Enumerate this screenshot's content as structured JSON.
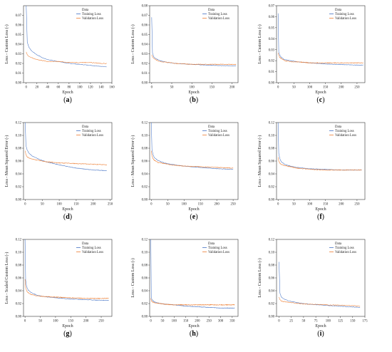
{
  "colors": {
    "training": "#4472c4",
    "validation": "#ed7d31",
    "axis": "#333333"
  },
  "chart_data": [
    {
      "type": "line",
      "label": "(a)",
      "legend_title": "Data",
      "legend_position": "top-right",
      "xlabel": "Epoch",
      "ylabel": "Loss - Custom Loss (-)",
      "xlim": [
        -5,
        160
      ],
      "ylim": [
        0.0,
        0.08
      ],
      "xticks": [
        0,
        20,
        40,
        60,
        80,
        100,
        120,
        140,
        160
      ],
      "yticks": [
        0.0,
        0.01,
        0.02,
        0.03,
        0.04,
        0.05,
        0.06,
        0.07
      ],
      "series": [
        {
          "name": "Training Loss",
          "x": [
            0,
            2,
            5,
            10,
            20,
            30,
            40,
            60,
            80,
            100,
            120,
            140,
            150
          ],
          "y": [
            0.08,
            0.042,
            0.037,
            0.033,
            0.029,
            0.026,
            0.024,
            0.022,
            0.02,
            0.019,
            0.018,
            0.017,
            0.0165
          ]
        },
        {
          "name": "Validation Loss",
          "x": [
            0,
            2,
            5,
            10,
            20,
            30,
            40,
            60,
            80,
            100,
            120,
            140,
            150
          ],
          "y": [
            0.032,
            0.029,
            0.027,
            0.026,
            0.024,
            0.023,
            0.022,
            0.022,
            0.021,
            0.021,
            0.021,
            0.02,
            0.02
          ]
        }
      ]
    },
    {
      "type": "line",
      "label": "(b)",
      "legend_title": "Data",
      "legend_position": "top-right",
      "xlabel": "Epoch",
      "ylabel": "Loss - Custom Loss (-)",
      "xlim": [
        -5,
        215
      ],
      "ylim": [
        0.0,
        0.08
      ],
      "xticks": [
        0,
        50,
        100,
        150,
        200
      ],
      "yticks": [
        0.0,
        0.01,
        0.02,
        0.03,
        0.04,
        0.05,
        0.06,
        0.07,
        0.08
      ],
      "series": [
        {
          "name": "Training Loss",
          "x": [
            0,
            2,
            5,
            10,
            20,
            40,
            60,
            100,
            150,
            200,
            210
          ],
          "y": [
            0.068,
            0.031,
            0.027,
            0.025,
            0.023,
            0.021,
            0.02,
            0.019,
            0.018,
            0.0175,
            0.0175
          ]
        },
        {
          "name": "Validation Loss",
          "x": [
            0,
            2,
            5,
            10,
            20,
            40,
            60,
            100,
            150,
            200,
            210
          ],
          "y": [
            0.029,
            0.027,
            0.025,
            0.024,
            0.022,
            0.021,
            0.02,
            0.019,
            0.019,
            0.019,
            0.019
          ]
        }
      ]
    },
    {
      "type": "line",
      "label": "(c)",
      "legend_title": "Data",
      "legend_position": "top-right",
      "xlabel": "Epoch",
      "ylabel": "Loss - Custom Loss (-)",
      "xlim": [
        -5,
        275
      ],
      "ylim": [
        0.0,
        0.07
      ],
      "xticks": [
        0,
        50,
        100,
        150,
        200,
        250
      ],
      "yticks": [
        0.0,
        0.01,
        0.02,
        0.03,
        0.04,
        0.05,
        0.06,
        0.07
      ],
      "series": [
        {
          "name": "Training Loss",
          "x": [
            0,
            2,
            5,
            10,
            20,
            40,
            60,
            100,
            150,
            200,
            250,
            270
          ],
          "y": [
            0.063,
            0.028,
            0.025,
            0.023,
            0.021,
            0.02,
            0.019,
            0.018,
            0.017,
            0.0165,
            0.016,
            0.016
          ]
        },
        {
          "name": "Validation Loss",
          "x": [
            0,
            2,
            5,
            10,
            20,
            40,
            60,
            100,
            150,
            200,
            250,
            270
          ],
          "y": [
            0.027,
            0.025,
            0.023,
            0.022,
            0.02,
            0.019,
            0.019,
            0.018,
            0.018,
            0.018,
            0.018,
            0.018
          ]
        }
      ]
    },
    {
      "type": "line",
      "label": "(d)",
      "legend_title": "Data",
      "legend_position": "top-right",
      "xlabel": "Epoch",
      "ylabel": "Loss - Mean Squared Error (-)",
      "xlim": [
        -5,
        255
      ],
      "ylim": [
        0.0,
        0.12
      ],
      "xticks": [
        0,
        50,
        100,
        150,
        200,
        250
      ],
      "yticks": [
        0.0,
        0.02,
        0.04,
        0.06,
        0.08,
        0.1,
        0.12
      ],
      "series": [
        {
          "name": "Training Loss",
          "x": [
            0,
            2,
            5,
            10,
            20,
            40,
            60,
            100,
            150,
            200,
            240
          ],
          "y": [
            0.12,
            0.085,
            0.078,
            0.073,
            0.068,
            0.063,
            0.059,
            0.054,
            0.049,
            0.046,
            0.045
          ]
        },
        {
          "name": "Validation Loss",
          "x": [
            0,
            2,
            5,
            10,
            20,
            40,
            60,
            100,
            150,
            200,
            240
          ],
          "y": [
            0.076,
            0.07,
            0.067,
            0.065,
            0.063,
            0.061,
            0.059,
            0.057,
            0.056,
            0.055,
            0.054
          ]
        }
      ]
    },
    {
      "type": "line",
      "label": "(e)",
      "legend_title": "Data",
      "legend_position": "top-right",
      "xlabel": "Epoch",
      "ylabel": "Loss - Mean Squared Error (-)",
      "xlim": [
        -5,
        265
      ],
      "ylim": [
        0.0,
        0.12
      ],
      "xticks": [
        0,
        50,
        100,
        150,
        200,
        250
      ],
      "yticks": [
        0.0,
        0.02,
        0.04,
        0.06,
        0.08,
        0.1,
        0.12
      ],
      "series": [
        {
          "name": "Training Loss",
          "x": [
            0,
            2,
            5,
            10,
            20,
            40,
            60,
            100,
            150,
            200,
            250
          ],
          "y": [
            0.12,
            0.078,
            0.07,
            0.065,
            0.061,
            0.057,
            0.055,
            0.052,
            0.05,
            0.048,
            0.047
          ]
        },
        {
          "name": "Validation Loss",
          "x": [
            0,
            2,
            5,
            10,
            20,
            40,
            60,
            100,
            150,
            200,
            250
          ],
          "y": [
            0.076,
            0.068,
            0.064,
            0.061,
            0.058,
            0.056,
            0.054,
            0.052,
            0.051,
            0.05,
            0.049
          ]
        }
      ]
    },
    {
      "type": "line",
      "label": "(f)",
      "legend_title": "Data",
      "legend_position": "top-right",
      "xlabel": "Epoch",
      "ylabel": "Loss - Mean Squared Error (-)",
      "xlim": [
        -5,
        275
      ],
      "ylim": [
        0.0,
        0.12
      ],
      "xticks": [
        0,
        50,
        100,
        150,
        200,
        250
      ],
      "yticks": [
        0.0,
        0.02,
        0.04,
        0.06,
        0.08,
        0.1,
        0.12
      ],
      "series": [
        {
          "name": "Training Loss",
          "x": [
            0,
            2,
            5,
            10,
            20,
            40,
            60,
            100,
            150,
            200,
            265
          ],
          "y": [
            0.12,
            0.072,
            0.064,
            0.059,
            0.055,
            0.052,
            0.05,
            0.048,
            0.047,
            0.046,
            0.046
          ]
        },
        {
          "name": "Validation Loss",
          "x": [
            0,
            2,
            5,
            10,
            20,
            40,
            60,
            100,
            150,
            200,
            265
          ],
          "y": [
            0.066,
            0.06,
            0.057,
            0.055,
            0.053,
            0.051,
            0.049,
            0.047,
            0.046,
            0.046,
            0.046
          ]
        }
      ]
    },
    {
      "type": "line",
      "label": "(g)",
      "legend_title": "Data",
      "legend_position": "top-right",
      "xlabel": "Epoch",
      "ylabel": "Loss - Scaled Custom Loss (-)",
      "xlim": [
        -5,
        285
      ],
      "ylim": [
        0.0,
        0.12
      ],
      "xticks": [
        0,
        50,
        100,
        150,
        200,
        250
      ],
      "yticks": [
        0.0,
        0.02,
        0.04,
        0.06,
        0.08,
        0.1,
        0.12
      ],
      "series": [
        {
          "name": "Training Loss",
          "x": [
            0,
            2,
            5,
            10,
            20,
            40,
            60,
            100,
            150,
            200,
            250,
            275
          ],
          "y": [
            0.12,
            0.056,
            0.047,
            0.041,
            0.037,
            0.033,
            0.031,
            0.029,
            0.027,
            0.026,
            0.025,
            0.025
          ]
        },
        {
          "name": "Validation Loss",
          "x": [
            0,
            2,
            5,
            10,
            20,
            40,
            60,
            100,
            150,
            200,
            250,
            275
          ],
          "y": [
            0.058,
            0.045,
            0.04,
            0.037,
            0.034,
            0.032,
            0.031,
            0.03,
            0.029,
            0.028,
            0.028,
            0.028
          ]
        }
      ]
    },
    {
      "type": "line",
      "label": "(h)",
      "legend_title": "Data",
      "legend_position": "top-right",
      "xlabel": "Epoch",
      "ylabel": "Loss - Custom Loss (-)",
      "xlim": [
        -5,
        375
      ],
      "ylim": [
        0.0,
        0.12
      ],
      "xticks": [
        0,
        50,
        100,
        150,
        200,
        250,
        300,
        350
      ],
      "yticks": [
        0.0,
        0.02,
        0.04,
        0.06,
        0.08,
        0.1,
        0.12
      ],
      "series": [
        {
          "name": "Training Loss",
          "x": [
            0,
            2,
            5,
            10,
            20,
            40,
            60,
            100,
            150,
            200,
            250,
            300,
            360
          ],
          "y": [
            0.12,
            0.03,
            0.026,
            0.024,
            0.022,
            0.02,
            0.019,
            0.018,
            0.016,
            0.015,
            0.014,
            0.013,
            0.013
          ]
        },
        {
          "name": "Validation Loss",
          "x": [
            0,
            2,
            5,
            10,
            20,
            40,
            60,
            100,
            150,
            200,
            250,
            300,
            360
          ],
          "y": [
            0.028,
            0.025,
            0.023,
            0.022,
            0.021,
            0.02,
            0.019,
            0.018,
            0.018,
            0.018,
            0.018,
            0.018,
            0.018
          ]
        }
      ]
    },
    {
      "type": "line",
      "label": "(i)",
      "legend_title": "Data",
      "legend_position": "top-right",
      "xlabel": "Epoch",
      "ylabel": "Loss - Custom Loss (-)",
      "xlim": [
        -5,
        175
      ],
      "ylim": [
        0.0,
        0.12
      ],
      "xticks": [
        0,
        25,
        50,
        75,
        100,
        125,
        150,
        175
      ],
      "yticks": [
        0.0,
        0.02,
        0.04,
        0.06,
        0.08,
        0.1,
        0.12
      ],
      "series": [
        {
          "name": "Training Loss",
          "x": [
            0,
            2,
            5,
            10,
            20,
            40,
            60,
            100,
            140,
            165
          ],
          "y": [
            0.085,
            0.036,
            0.03,
            0.027,
            0.024,
            0.021,
            0.019,
            0.017,
            0.015,
            0.014
          ]
        },
        {
          "name": "Validation Loss",
          "x": [
            0,
            2,
            5,
            10,
            20,
            40,
            60,
            100,
            140,
            165
          ],
          "y": [
            0.03,
            0.026,
            0.024,
            0.023,
            0.022,
            0.02,
            0.019,
            0.018,
            0.017,
            0.016
          ]
        }
      ]
    }
  ]
}
